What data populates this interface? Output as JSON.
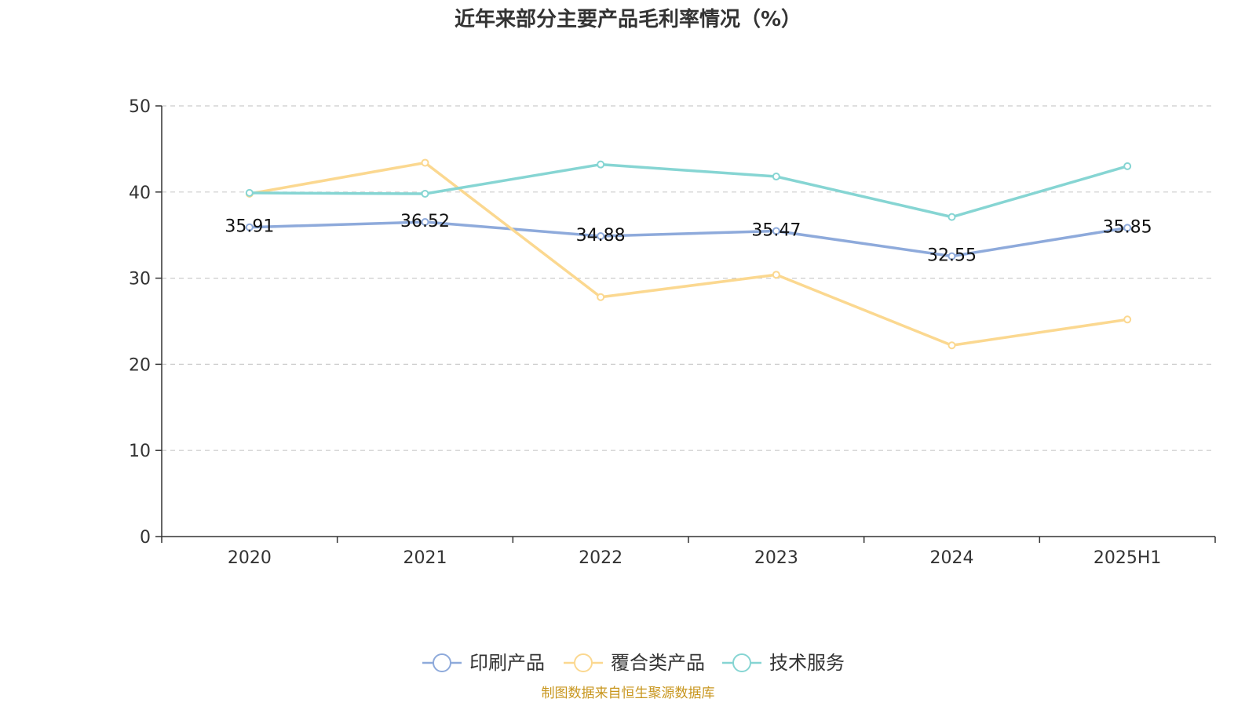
{
  "chart_data": {
    "type": "line",
    "title": "近年来部分主要产品毛利率情况（%）",
    "categories": [
      "2020",
      "2021",
      "2022",
      "2023",
      "2024",
      "2025H1"
    ],
    "ylim": [
      0,
      50
    ],
    "yticks": [
      0,
      10,
      20,
      30,
      40,
      50
    ],
    "grid": true,
    "legend_position": "bottom",
    "series": [
      {
        "name": "印刷产品",
        "color": "#8eaadb",
        "values": [
          35.91,
          36.52,
          34.88,
          35.47,
          32.55,
          35.85
        ],
        "labels": [
          "35.91",
          "36.52",
          "34.88",
          "35.47",
          "32.55",
          "35.85"
        ]
      },
      {
        "name": "覆合类产品",
        "color": "#fbd890",
        "values": [
          39.8,
          43.4,
          27.8,
          30.4,
          22.2,
          25.2
        ]
      },
      {
        "name": "技术服务",
        "color": "#86d5d3",
        "values": [
          39.9,
          39.8,
          43.2,
          41.8,
          37.1,
          43.0
        ]
      }
    ]
  },
  "source_note": "制图数据来自恒生聚源数据库"
}
